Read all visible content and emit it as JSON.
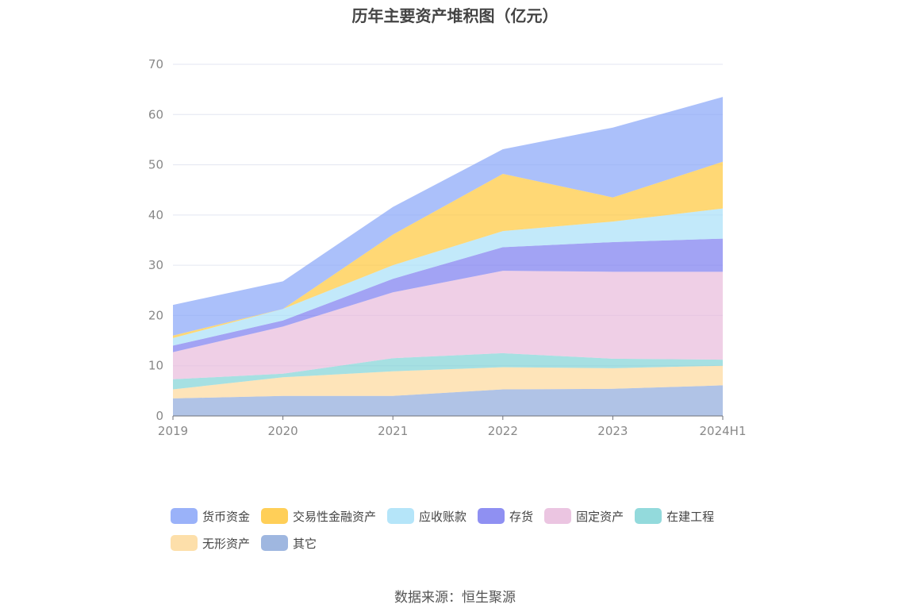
{
  "chart_data": {
    "type": "area",
    "stacked": true,
    "title": "历年主要资产堆积图（亿元）",
    "categories": [
      "2019",
      "2020",
      "2021",
      "2022",
      "2023",
      "2024H1"
    ],
    "ylim": [
      0,
      70
    ],
    "yticks": [
      "0",
      "10",
      "20",
      "30",
      "40",
      "50",
      "60",
      "70"
    ],
    "grid": true,
    "legend_position": "bottom",
    "series": [
      {
        "name": "其它",
        "color": "#8eaadb",
        "values": [
          3.5,
          4.0,
          4.0,
          5.3,
          5.4,
          6.1
        ]
      },
      {
        "name": "无形资产",
        "color": "#fdd99b",
        "values": [
          1.8,
          3.7,
          4.9,
          4.4,
          4.1,
          3.9
        ]
      },
      {
        "name": "在建工程",
        "color": "#80d3d6",
        "values": [
          2.0,
          0.7,
          2.6,
          2.8,
          1.9,
          1.2
        ]
      },
      {
        "name": "固定资产",
        "color": "#e8bbdc",
        "values": [
          5.4,
          9.4,
          13.1,
          16.4,
          17.3,
          17.5
        ]
      },
      {
        "name": "存货",
        "color": "#7b7cf0",
        "values": [
          1.3,
          1.2,
          2.7,
          4.7,
          5.9,
          6.6
        ]
      },
      {
        "name": "应收账款",
        "color": "#a8e0f8",
        "values": [
          1.5,
          2.3,
          2.7,
          3.2,
          4.1,
          6.0
        ]
      },
      {
        "name": "交易性金融资产",
        "color": "#ffc73b",
        "values": [
          0.5,
          0.0,
          6.1,
          11.4,
          4.8,
          9.3
        ]
      },
      {
        "name": "货币资金",
        "color": "#88a5f8",
        "values": [
          6.1,
          5.5,
          5.5,
          4.9,
          13.9,
          12.9
        ]
      }
    ]
  },
  "legend_order": [
    "货币资金",
    "交易性金融资产",
    "应收账款",
    "存货",
    "固定资产",
    "在建工程",
    "无形资产",
    "其它"
  ],
  "source": "数据来源：恒生聚源"
}
